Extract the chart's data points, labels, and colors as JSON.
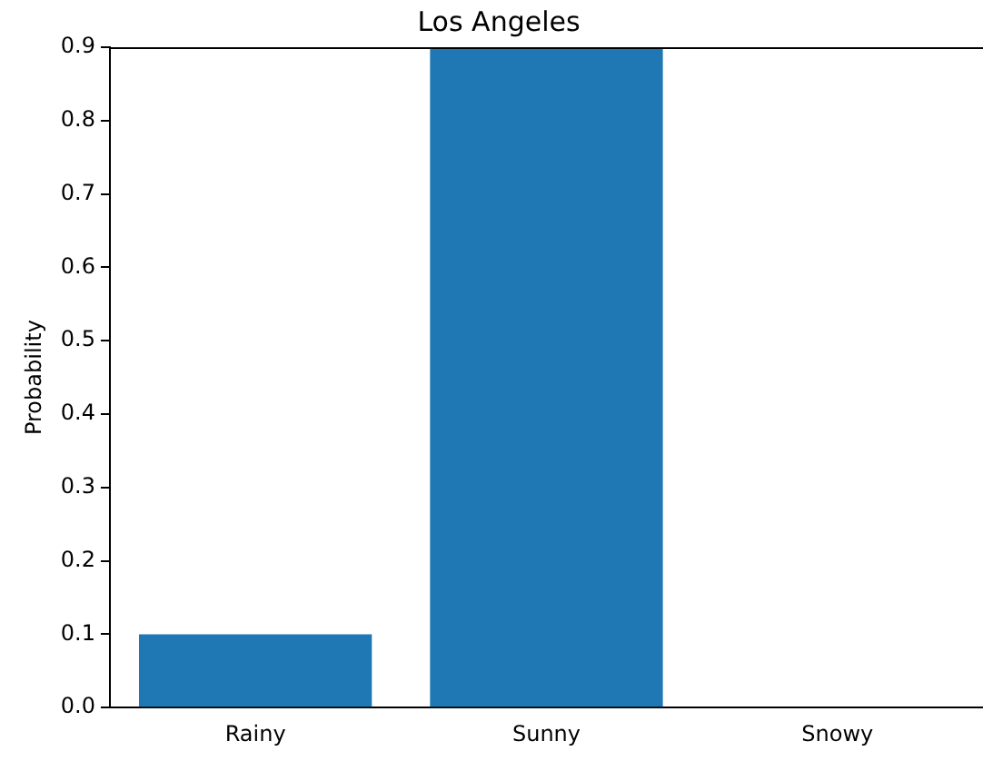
{
  "chart_data": {
    "type": "bar",
    "title": "Los Angeles",
    "ylabel": "Probability",
    "categories": [
      "Rainy",
      "Sunny",
      "Snowy"
    ],
    "values": [
      0.1,
      0.9,
      0
    ],
    "color": "#1f77b4",
    "ylim": [
      0,
      0.9
    ],
    "yticks": [
      {
        "value": 0,
        "label": "0.0"
      },
      0.1,
      0.2,
      0.3,
      0.4,
      0.5,
      0.6,
      0.7,
      0.8,
      0.9
    ],
    "grid": false
  }
}
